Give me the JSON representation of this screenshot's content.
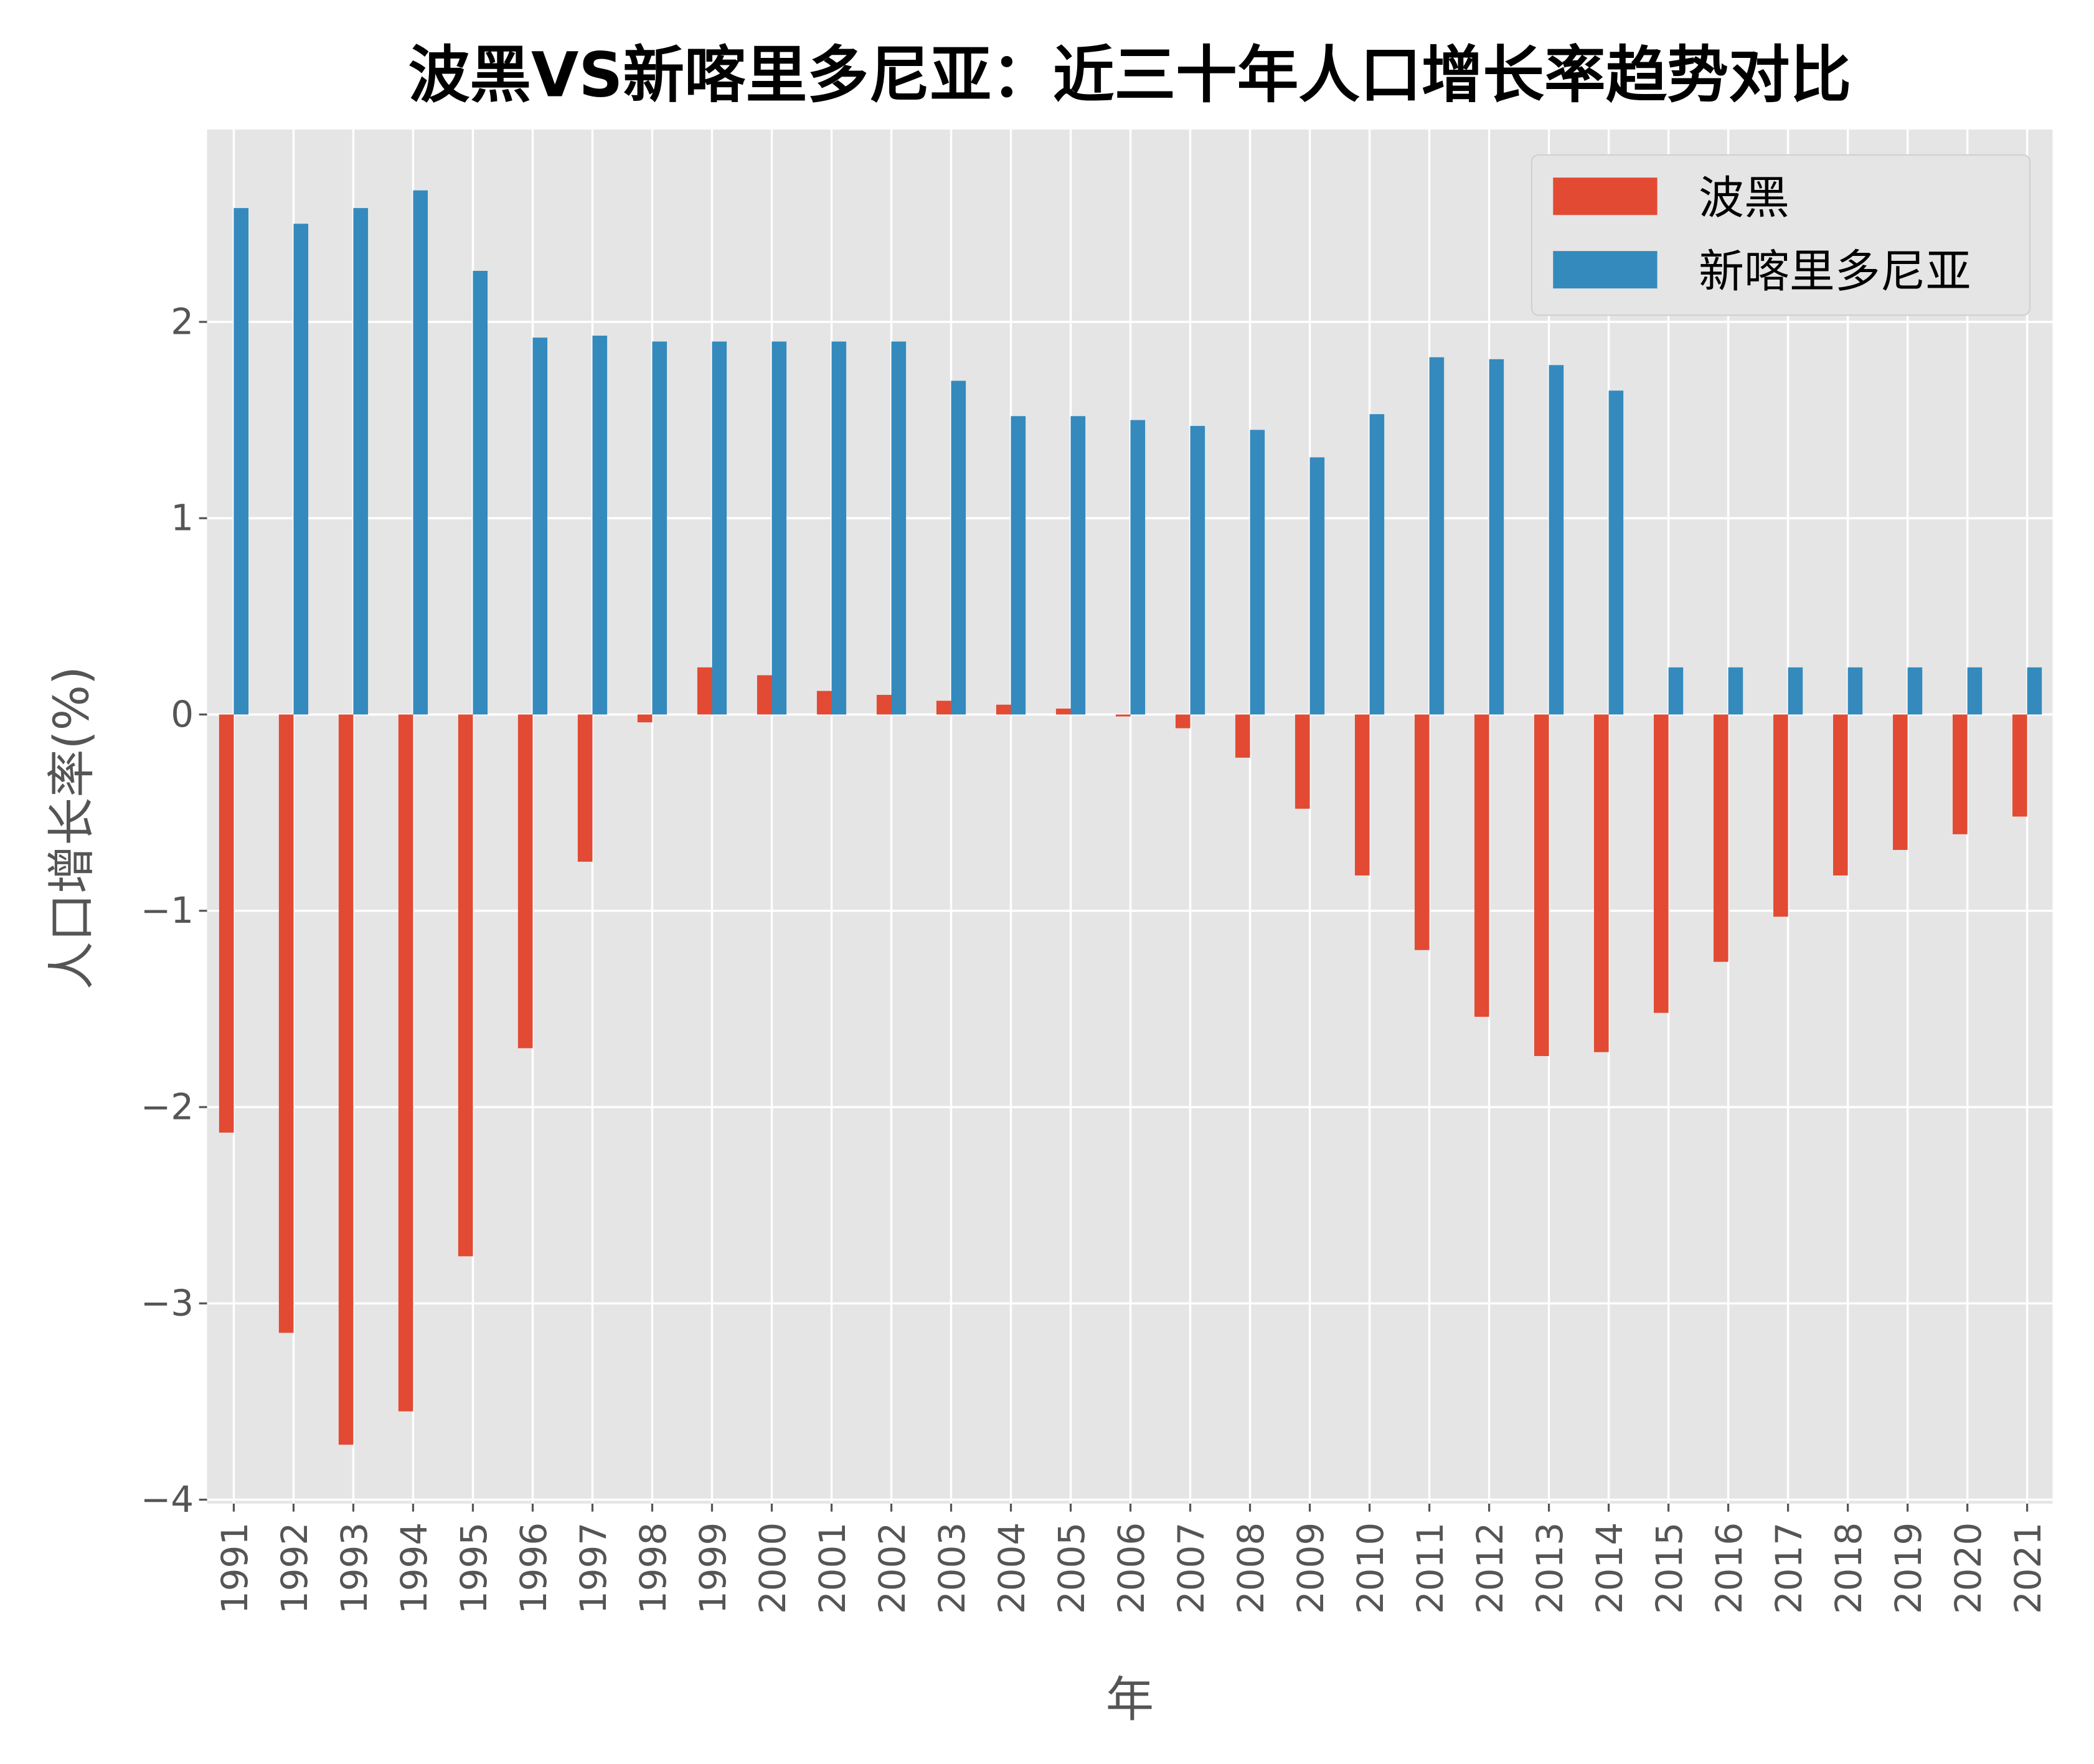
{
  "chart_data": {
    "type": "bar",
    "title": "波黑VS新喀里多尼亚：近三十年人口增长率趋势对比",
    "xlabel": "年",
    "ylabel": "人口增长率(%)",
    "ylim": [
      -4.02,
      2.98
    ],
    "yticks": [
      "−4",
      "−3",
      "−2",
      "−1",
      "0",
      "1",
      "2"
    ],
    "ytick_values": [
      -4,
      -3,
      -2,
      -1,
      0,
      1,
      2
    ],
    "grid": true,
    "legend_position": "top-right",
    "categories": [
      "1991",
      "1992",
      "1993",
      "1994",
      "1995",
      "1996",
      "1997",
      "1998",
      "1999",
      "2000",
      "2001",
      "2002",
      "2003",
      "2004",
      "2005",
      "2006",
      "2007",
      "2008",
      "2009",
      "2010",
      "2011",
      "2012",
      "2013",
      "2014",
      "2015",
      "2016",
      "2017",
      "2018",
      "2019",
      "2020",
      "2021"
    ],
    "series": [
      {
        "name": "波黑",
        "color": "#E24A33",
        "values": [
          -2.13,
          -3.15,
          -3.72,
          -3.55,
          -2.76,
          -1.7,
          -0.75,
          -0.04,
          0.24,
          0.2,
          0.12,
          0.1,
          0.07,
          0.05,
          0.03,
          -0.01,
          -0.07,
          -0.22,
          -0.48,
          -0.82,
          -1.2,
          -1.54,
          -1.74,
          -1.72,
          -1.52,
          -1.26,
          -1.03,
          -0.82,
          -0.69,
          -0.61,
          -0.52
        ]
      },
      {
        "name": "新喀里多尼亚",
        "color": "#348ABD",
        "values": [
          2.58,
          2.5,
          2.58,
          2.67,
          2.26,
          1.92,
          1.93,
          1.9,
          1.9,
          1.9,
          1.9,
          1.9,
          1.7,
          1.52,
          1.52,
          1.5,
          1.47,
          1.45,
          1.31,
          1.53,
          1.82,
          1.81,
          1.78,
          1.65,
          0.24,
          0.24,
          0.24,
          0.24,
          0.24,
          0.24,
          0.24
        ]
      }
    ]
  }
}
